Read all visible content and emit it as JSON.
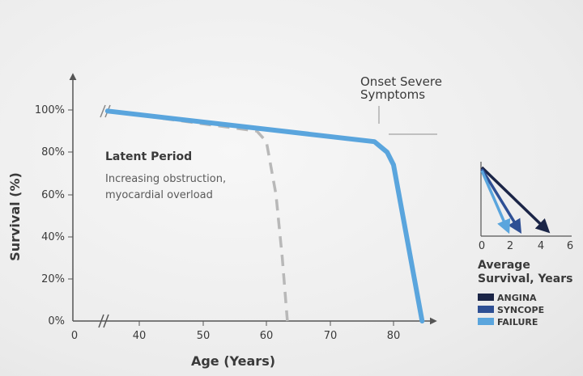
{
  "chart_data": [
    {
      "type": "line",
      "xlabel": "Age (Years)",
      "ylabel": "Survival (%)",
      "x_ticks": [
        "0",
        "40",
        "50",
        "60",
        "70",
        "80"
      ],
      "y_ticks": [
        "0%",
        "20%",
        "40%",
        "60%",
        "80%",
        "100%"
      ],
      "xlim": [
        35,
        87
      ],
      "ylim": [
        0,
        100
      ],
      "axis_break": true,
      "series": [
        {
          "style": "solid",
          "color": "#5aa5dd",
          "points": [
            [
              35,
              99.5
            ],
            [
              77,
              85
            ],
            [
              79,
              80
            ],
            [
              80,
              74
            ],
            [
              84.5,
              0
            ]
          ]
        },
        {
          "style": "dashed",
          "color": "#b8b8b8",
          "points": [
            [
              35,
              99.5
            ],
            [
              58.5,
              90
            ],
            [
              60,
              85
            ],
            [
              61.5,
              60
            ],
            [
              62.5,
              30
            ],
            [
              63.3,
              0
            ]
          ]
        }
      ],
      "annotations": {
        "latent_title": "Latent Period",
        "latent_line1": "Increasing obstruction,",
        "latent_line2": "myocardial overload",
        "onset_line1": "Onset Severe",
        "onset_line2": "Symptoms"
      }
    },
    {
      "type": "line",
      "title_line1": "Average",
      "title_line2": "Survival, Years",
      "x_ticks": [
        "0",
        "2",
        "4",
        "6"
      ],
      "xlim": [
        0,
        6
      ],
      "series": [
        {
          "name": "ANGINA",
          "color": "#1b2547",
          "end_x": 4.5
        },
        {
          "name": "SYNCOPE",
          "color": "#2e4f94",
          "end_x": 2.6
        },
        {
          "name": "FAILURE",
          "color": "#5aa5dd",
          "end_x": 1.8
        }
      ]
    }
  ]
}
